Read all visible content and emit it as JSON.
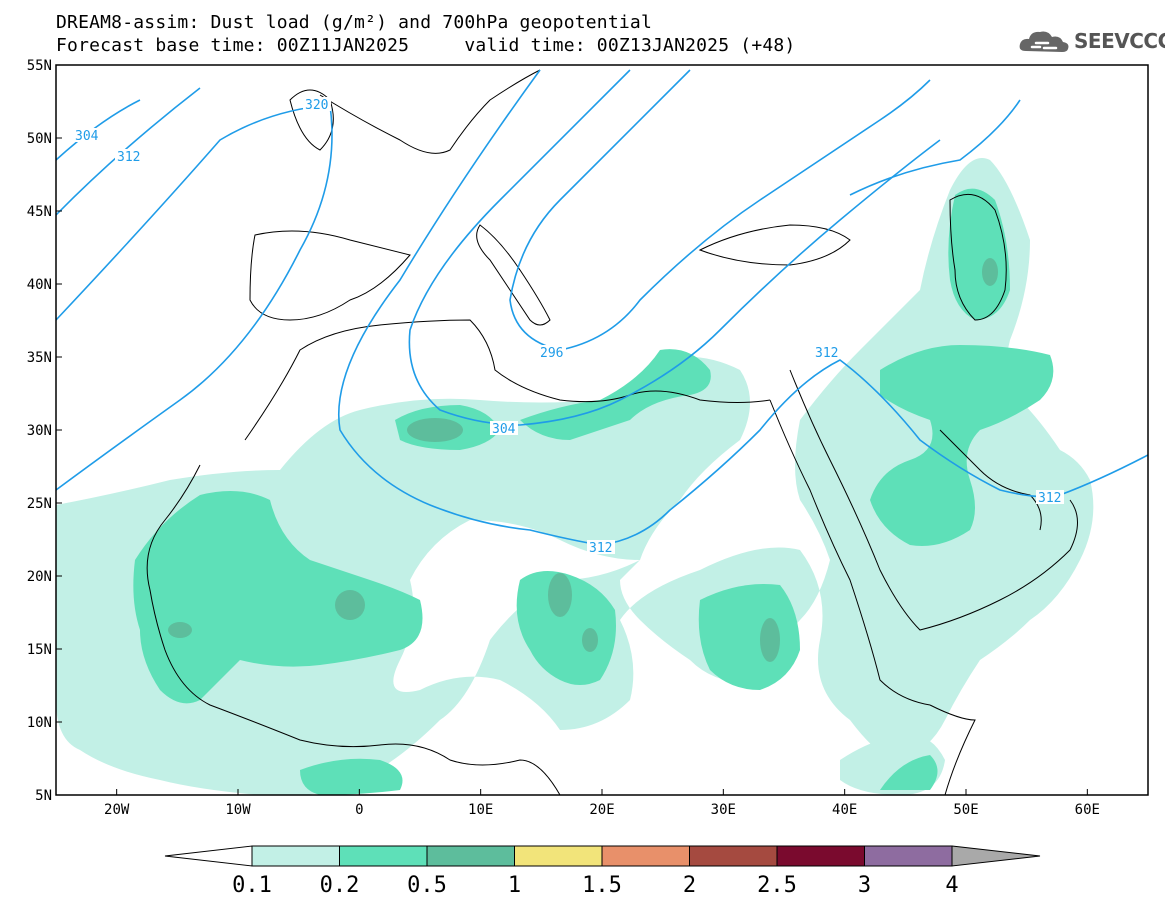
{
  "title": {
    "line1": "DREAM8-assim: Dust load (g/m²) and 700hPa geopotential",
    "line2": "Forecast base time: 00Z11JAN2025     valid time: 00Z13JAN2025 (+48)"
  },
  "logo": {
    "text": "SEEVCCC",
    "icon": "cloud-icon"
  },
  "map": {
    "lat_labels": [
      "55N",
      "50N",
      "45N",
      "40N",
      "35N",
      "30N",
      "25N",
      "20N",
      "15N",
      "10N",
      "5N"
    ],
    "lon_labels": [
      "20W",
      "10W",
      "0",
      "10E",
      "20E",
      "30E",
      "40E",
      "50E",
      "60E"
    ],
    "lon_range": [
      -25,
      65
    ],
    "lat_range": [
      5,
      55
    ]
  },
  "contour_labels": [
    "304",
    "312",
    "320",
    "296",
    "304",
    "312",
    "312",
    "312"
  ],
  "colorbar": {
    "colors": [
      "#c2f0e6",
      "#5ee0b8",
      "#5dbd9c",
      "#f2e47a",
      "#e8906a",
      "#a54a40",
      "#7a0a2e",
      "#8e6ca0",
      "#a9a9a9"
    ],
    "tick_labels": [
      "0.1",
      "0.2",
      "0.5",
      "1",
      "1.5",
      "2",
      "2.5",
      "3",
      "4"
    ]
  },
  "colors": {
    "dust_light": "#c2f0e6",
    "dust_mid": "#5ee0b8",
    "dust_dark": "#5dbd9c",
    "contour": "#1f9ce8",
    "coast": "#000000"
  }
}
